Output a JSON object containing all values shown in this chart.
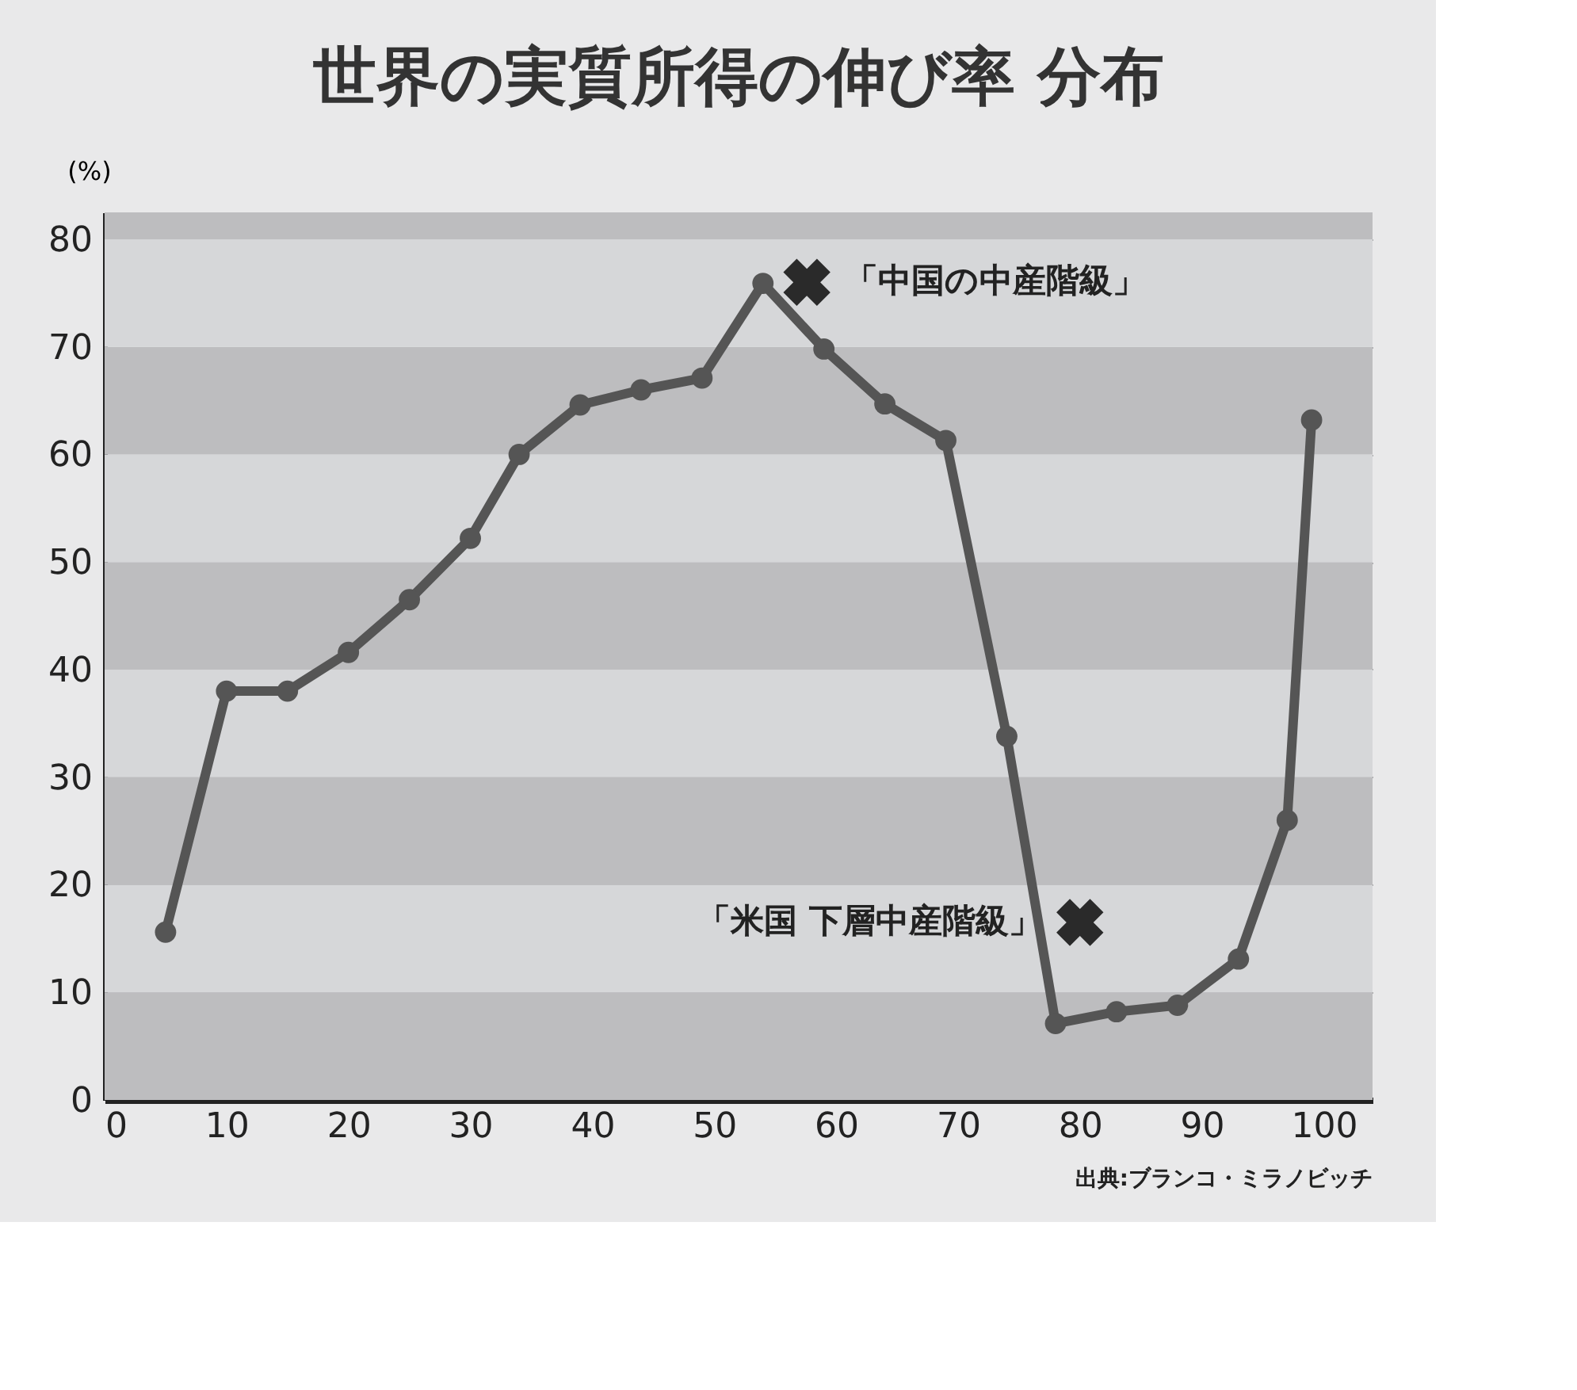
{
  "chart_data": {
    "type": "line",
    "title": "世界の実質所得の伸び率 分布",
    "ylabel": "(%)",
    "x": [
      5,
      10,
      15,
      20,
      25,
      30,
      34,
      39,
      44,
      49,
      54,
      59,
      64,
      69,
      74,
      78,
      83,
      88,
      93,
      97,
      99
    ],
    "series": [
      {
        "color": "#555555",
        "values": [
          15.6,
          38.0,
          38.0,
          41.6,
          46.5,
          52.2,
          60.0,
          64.6,
          66.0,
          67.1,
          75.9,
          69.8,
          64.7,
          61.3,
          33.8,
          7.1,
          8.2,
          8.8,
          13.1,
          26.0,
          63.2
        ]
      }
    ],
    "marker": "circle",
    "line_style": "solid",
    "grid": "y",
    "xlim": [
      0,
      104
    ],
    "xticks": [
      0,
      10,
      20,
      30,
      40,
      50,
      60,
      70,
      80,
      90,
      100
    ],
    "ylim": [
      0,
      82.5
    ],
    "yticks": [
      0,
      10,
      20,
      30,
      40,
      50,
      60,
      70,
      80
    ],
    "annotations": [
      {
        "text": "「中国の中産階級」",
        "x": 57.6,
        "y": 76
      },
      {
        "text": "「米国 下層中産階級」",
        "x": 80,
        "y": 16.5
      },
      "出典:ブランコ・ミラノビッチ"
    ]
  }
}
